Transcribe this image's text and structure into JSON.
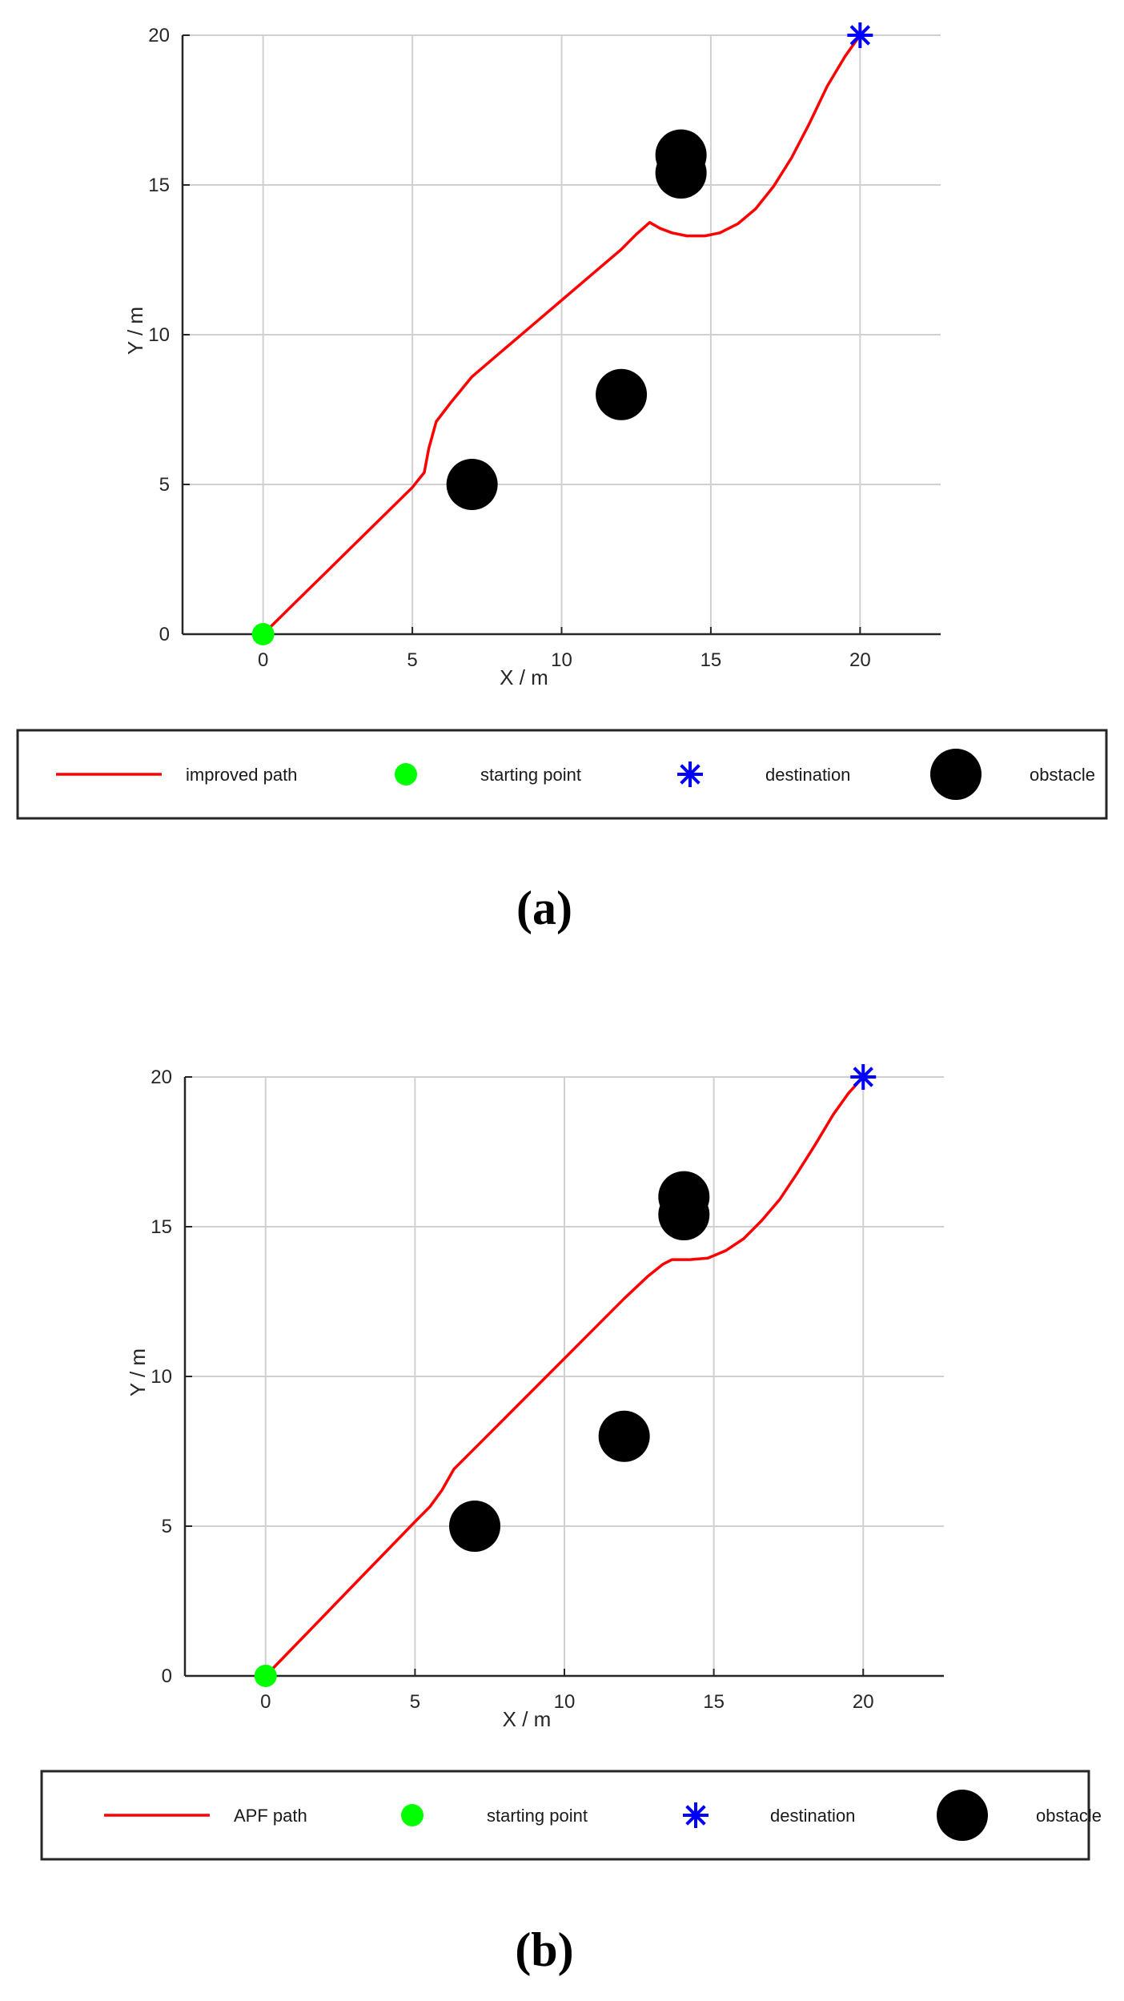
{
  "chart_data": [
    {
      "type": "line",
      "panel_label": "(a)",
      "xlabel": "X / m",
      "ylabel": "Y / m",
      "xlim": [
        -2.7,
        22.7
      ],
      "ylim": [
        0,
        20
      ],
      "xticks": [
        0,
        5,
        10,
        15,
        20
      ],
      "yticks": [
        0,
        5,
        10,
        15,
        20
      ],
      "grid": true,
      "legend_position": "bottom",
      "series": [
        {
          "name": "improved path",
          "kind": "line",
          "color": "#ff0000",
          "points": [
            [
              0,
              0
            ],
            [
              1,
              0.98
            ],
            [
              2,
              1.96
            ],
            [
              3,
              2.94
            ],
            [
              4,
              3.92
            ],
            [
              5,
              4.9
            ],
            [
              5.4,
              5.4
            ],
            [
              5.55,
              6.2
            ],
            [
              5.8,
              7.1
            ],
            [
              6.3,
              7.75
            ],
            [
              7,
              8.6
            ],
            [
              8,
              9.45
            ],
            [
              9,
              10.3
            ],
            [
              10,
              11.15
            ],
            [
              11,
              12.0
            ],
            [
              12,
              12.85
            ],
            [
              12.5,
              13.35
            ],
            [
              12.95,
              13.75
            ],
            [
              13.3,
              13.55
            ],
            [
              13.7,
              13.4
            ],
            [
              14.2,
              13.3
            ],
            [
              14.8,
              13.3
            ],
            [
              15.3,
              13.4
            ],
            [
              15.9,
              13.7
            ],
            [
              16.5,
              14.2
            ],
            [
              17.1,
              14.95
            ],
            [
              17.7,
              15.9
            ],
            [
              18.3,
              17.05
            ],
            [
              18.9,
              18.3
            ],
            [
              19.5,
              19.3
            ],
            [
              20,
              20
            ]
          ]
        },
        {
          "name": "starting point",
          "kind": "marker",
          "marker": "circle",
          "color": "#00ff00",
          "points": [
            [
              0,
              0
            ]
          ]
        },
        {
          "name": "destination",
          "kind": "marker",
          "marker": "asterisk",
          "color": "#0000ff",
          "points": [
            [
              20,
              20
            ]
          ]
        },
        {
          "name": "obstacle",
          "kind": "marker",
          "marker": "circle",
          "color": "#000000",
          "points": [
            [
              7,
              5
            ],
            [
              12,
              8
            ],
            [
              14,
              16
            ],
            [
              14,
              15.4
            ]
          ]
        }
      ]
    },
    {
      "type": "line",
      "panel_label": "(b)",
      "xlabel": "X / m",
      "ylabel": "Y / m",
      "xlim": [
        -2.7,
        22.7
      ],
      "ylim": [
        0,
        20
      ],
      "xticks": [
        0,
        5,
        10,
        15,
        20
      ],
      "yticks": [
        0,
        5,
        10,
        15,
        20
      ],
      "grid": true,
      "legend_position": "bottom",
      "series": [
        {
          "name": "APF path",
          "kind": "line",
          "color": "#ff0000",
          "points": [
            [
              0,
              0
            ],
            [
              1,
              1.03
            ],
            [
              2,
              2.06
            ],
            [
              3,
              3.09
            ],
            [
              4,
              4.12
            ],
            [
              5,
              5.15
            ],
            [
              5.5,
              5.65
            ],
            [
              5.9,
              6.2
            ],
            [
              6.3,
              6.9
            ],
            [
              6.8,
              7.4
            ],
            [
              7.2,
              7.8
            ],
            [
              8,
              8.6
            ],
            [
              9,
              9.6
            ],
            [
              10,
              10.6
            ],
            [
              11,
              11.6
            ],
            [
              12,
              12.6
            ],
            [
              12.8,
              13.35
            ],
            [
              13.3,
              13.75
            ],
            [
              13.6,
              13.9
            ],
            [
              14.2,
              13.9
            ],
            [
              14.8,
              13.95
            ],
            [
              15.4,
              14.2
            ],
            [
              16,
              14.6
            ],
            [
              16.6,
              15.2
            ],
            [
              17.2,
              15.9
            ],
            [
              17.8,
              16.8
            ],
            [
              18.4,
              17.75
            ],
            [
              19,
              18.75
            ],
            [
              19.5,
              19.45
            ],
            [
              20,
              20
            ]
          ]
        },
        {
          "name": "starting point",
          "kind": "marker",
          "marker": "circle",
          "color": "#00ff00",
          "points": [
            [
              0,
              0
            ]
          ]
        },
        {
          "name": "destination",
          "kind": "marker",
          "marker": "asterisk",
          "color": "#0000ff",
          "points": [
            [
              20,
              20
            ]
          ]
        },
        {
          "name": "obstacle",
          "kind": "marker",
          "marker": "circle",
          "color": "#000000",
          "points": [
            [
              7,
              5
            ],
            [
              12,
              8
            ],
            [
              14,
              16
            ],
            [
              14,
              15.4
            ]
          ]
        }
      ]
    }
  ]
}
